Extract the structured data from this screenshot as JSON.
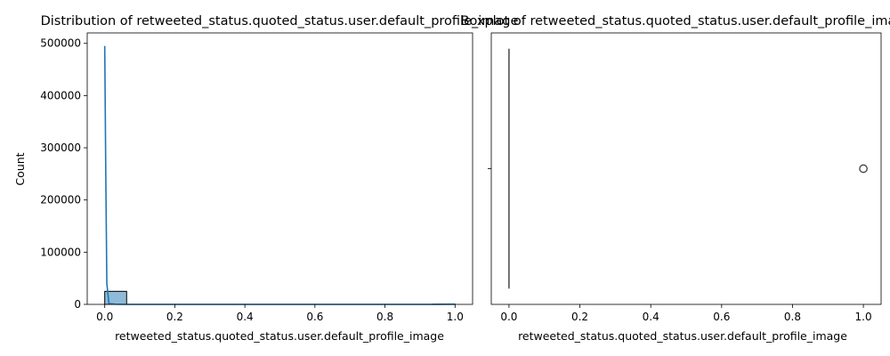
{
  "chart_data": [
    {
      "type": "histogram",
      "title": "Distribution of retweeted_status.quoted_status.user.default_profile_image",
      "xlabel": "retweeted_status.quoted_status.user.default_profile_image",
      "ylabel": "Count",
      "xlim": [
        -0.05,
        1.05
      ],
      "ylim": [
        0,
        520000
      ],
      "x_ticks": [
        0.0,
        0.2,
        0.4,
        0.6,
        0.8,
        1.0
      ],
      "x_tick_labels": [
        "0.0",
        "0.2",
        "0.4",
        "0.6",
        "0.8",
        "1.0"
      ],
      "y_ticks": [
        0,
        100000,
        200000,
        300000,
        400000,
        500000
      ],
      "y_tick_labels": [
        "0",
        "100000",
        "200000",
        "300000",
        "400000",
        "500000"
      ],
      "grid": false,
      "bars": [
        {
          "x0": 0.0,
          "x1": 0.0625,
          "count": 25000
        },
        {
          "x0": 0.0625,
          "x1": 0.9375,
          "count": 0
        },
        {
          "x0": 0.9375,
          "x1": 1.0,
          "count": 400
        }
      ],
      "kde": {
        "x": [
          0.0,
          0.003,
          0.006,
          0.012,
          0.03,
          0.06,
          0.1,
          0.2,
          0.4,
          0.6,
          0.8,
          0.95,
          1.0
        ],
        "y": [
          495000,
          250000,
          40000,
          1500,
          200,
          0,
          0,
          0,
          0,
          0,
          0,
          0,
          300
        ]
      },
      "bar_color": "#1f77b4",
      "line_color": "#1f77b4"
    },
    {
      "type": "boxplot",
      "title": "Boxplot of retweeted_status.quoted_status.user.default_profile_image",
      "xlabel": "retweeted_status.quoted_status.user.default_profile_image",
      "xlim": [
        -0.05,
        1.05
      ],
      "x_ticks": [
        0.0,
        0.2,
        0.4,
        0.6,
        0.8,
        1.0
      ],
      "x_tick_labels": [
        "0.0",
        "0.2",
        "0.4",
        "0.6",
        "0.8",
        "1.0"
      ],
      "grid": false,
      "box": {
        "q1": 0.0,
        "median": 0.0,
        "q3": 0.0,
        "whisker_low": 0.0,
        "whisker_high": 0.0
      },
      "outliers": [
        1.0
      ],
      "box_color": "#1f77b4"
    }
  ]
}
